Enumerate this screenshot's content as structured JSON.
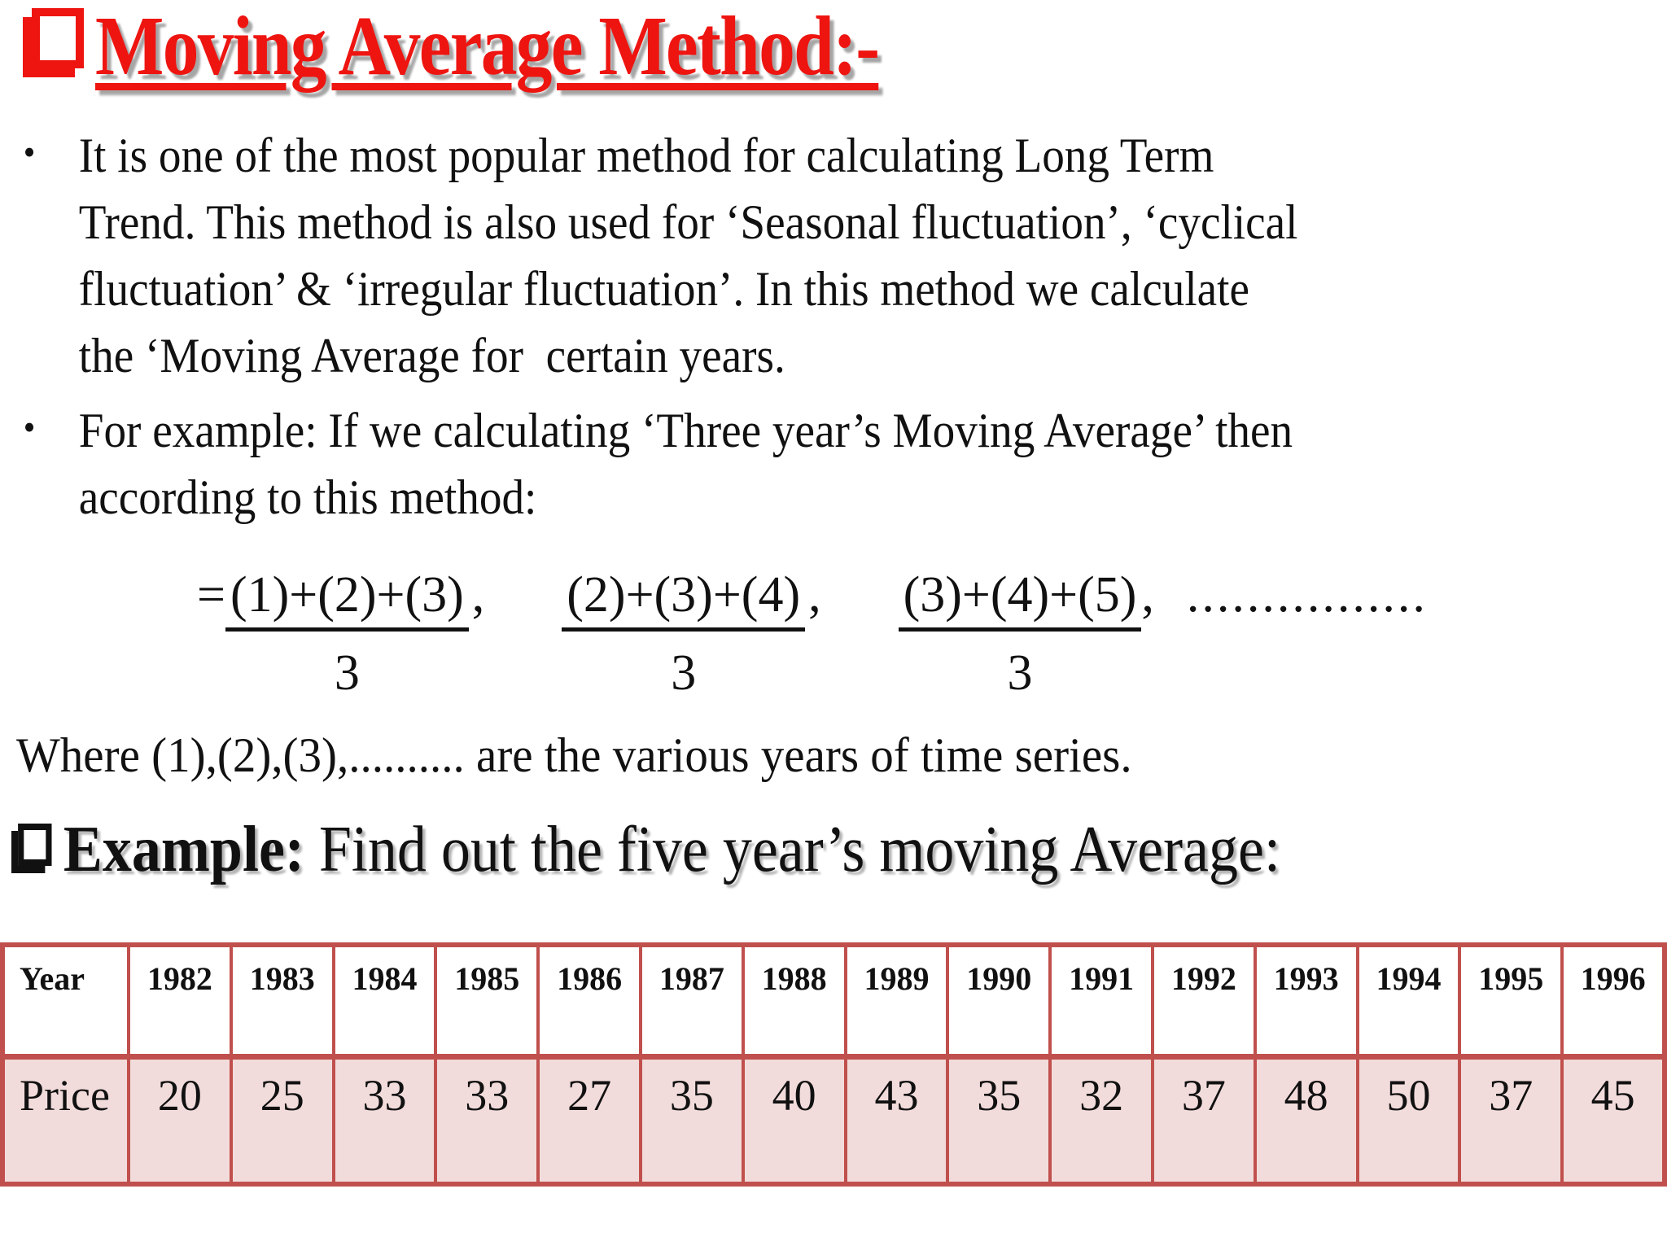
{
  "slide": {
    "title": {
      "text": "Moving Average Method:-"
    },
    "bullets": [
      {
        "text": "It is one of the most popular method for calculating Long Term\nTrend. This method is also used for ‘Seasonal fluctuation’, ‘cyclical\nfluctuation’ & ‘irregular fluctuation’. In this method we calculate\nthe ‘Moving Average for  certain years."
      },
      {
        "text": "For example: If we calculating ‘Three year’s Moving Average’ then\naccording to this method:"
      }
    ],
    "formula": {
      "equals": "=",
      "fractions": [
        {
          "numerator": "(1)+(2)+(3)",
          "denominator": "3",
          "separator": ","
        },
        {
          "numerator": "(2)+(3)+(4)",
          "denominator": "3",
          "separator": ","
        },
        {
          "numerator": "(3)+(4)+(5)",
          "denominator": "3",
          "separator": ","
        }
      ],
      "trailing_dots": "................"
    },
    "where_line": "Where (1),(2),(3),.......... are the various years of time series.",
    "example": {
      "label": "Example:",
      "text": "Find out the five year’s moving Average:"
    }
  },
  "table": {
    "rows": [
      {
        "label": "Year",
        "values": [
          "1982",
          "1983",
          "1984",
          "1985",
          "1986",
          "1987",
          "1988",
          "1989",
          "1990",
          "1991",
          "1992",
          "1993",
          "1994",
          "1995",
          "1996"
        ]
      },
      {
        "label": "Price",
        "values": [
          "20",
          "25",
          "33",
          "33",
          "27",
          "35",
          "40",
          "43",
          "35",
          "32",
          "37",
          "48",
          "50",
          "37",
          "45"
        ]
      }
    ]
  },
  "icons": {
    "title_bullet": "shadowed-square",
    "example_bullet": "shadowed-square",
    "list_bullet": "•"
  },
  "colors": {
    "title_red": "#ee1511",
    "table_border": "#c0504d",
    "price_row_bg": "#f2dcdb",
    "text": "#111111",
    "shadow_gray": "#a6a6a6"
  }
}
